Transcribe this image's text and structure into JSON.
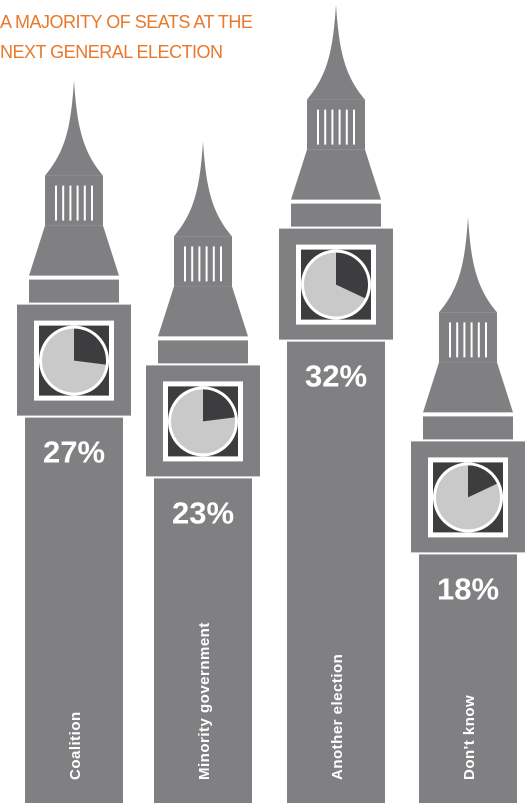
{
  "chart_data": {
    "type": "tower",
    "title": [
      "A MAJORITY OF SEATS AT THE",
      "NEXT GENERAL ELECTION"
    ],
    "categories": [
      "Coalition",
      "Minority government",
      "Another election",
      "Don't know"
    ],
    "values": [
      27,
      23,
      32,
      18
    ],
    "value_labels": [
      "27%",
      "23%",
      "32%",
      "18%"
    ],
    "color": "#808083"
  }
}
